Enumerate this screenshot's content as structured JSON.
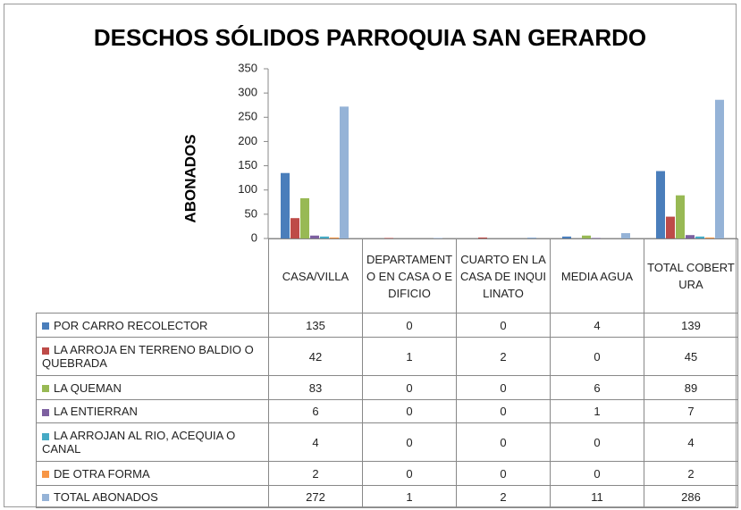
{
  "chart_data": {
    "type": "bar",
    "title": "DESCHOS SÓLIDOS PARROQUIA SAN GERARDO",
    "y_label": "ABONADOS",
    "categories": [
      "CASA/VILLA",
      "DEPARTAMENTO EN CASA O EDIFICIO",
      "CUARTO EN LA CASA DE INQUILINATO",
      "MEDIA AGUA",
      "TOTAL COBERTURA"
    ],
    "series": [
      {
        "name": "POR CARRO RECOLECTOR",
        "color": "#4a7ebb",
        "values": [
          135,
          0,
          0,
          4,
          139
        ]
      },
      {
        "name": "LA ARROJA EN TERRENO BALDIO O QUEBRADA",
        "color": "#be4b48",
        "values": [
          42,
          1,
          2,
          0,
          45
        ]
      },
      {
        "name": "LA QUEMAN",
        "color": "#98b954",
        "values": [
          83,
          0,
          0,
          6,
          89
        ]
      },
      {
        "name": "LA ENTIERRAN",
        "color": "#7d60a0",
        "values": [
          6,
          0,
          0,
          1,
          7
        ]
      },
      {
        "name": "LA ARROJAN AL RIO, ACEQUIA O CANAL",
        "color": "#46aac5",
        "values": [
          4,
          0,
          0,
          0,
          4
        ]
      },
      {
        "name": "DE OTRA FORMA",
        "color": "#f79646",
        "values": [
          2,
          0,
          0,
          0,
          2
        ]
      },
      {
        "name": "TOTAL ABONADOS",
        "color": "#95b3d7",
        "values": [
          272,
          1,
          2,
          11,
          286
        ]
      }
    ],
    "ylim": [
      0,
      350
    ],
    "yticks": [
      0,
      50,
      100,
      150,
      200,
      250,
      300,
      350
    ]
  }
}
